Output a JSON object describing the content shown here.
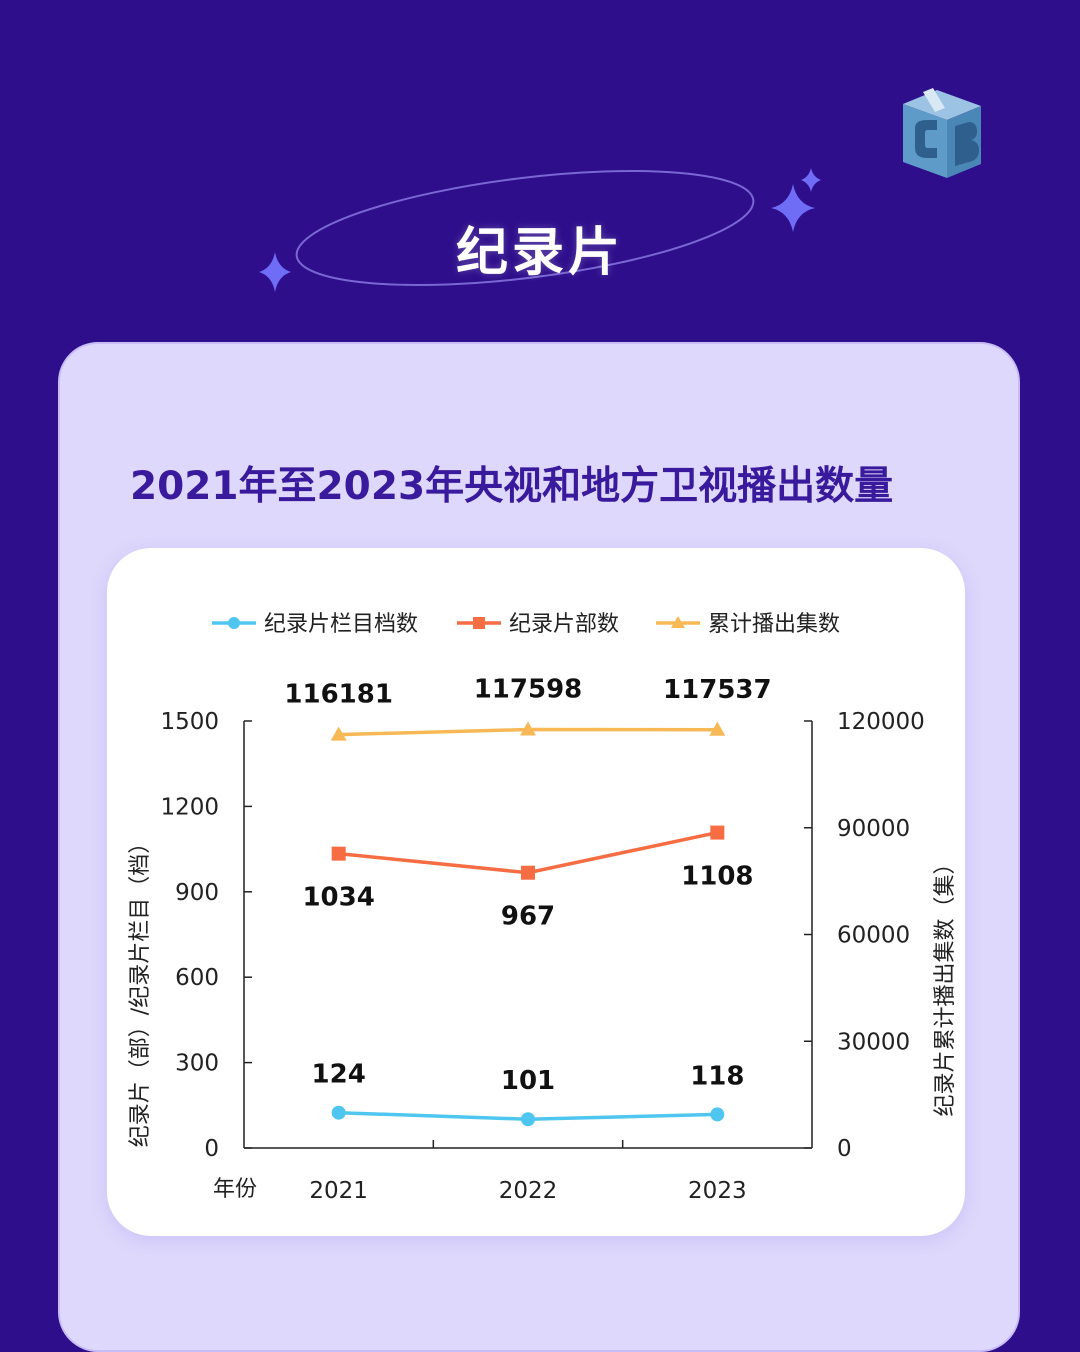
{
  "header": {
    "title": "纪录片"
  },
  "panel": {
    "title": "2021年至2023年央视和地方卫视播出数量"
  },
  "colors": {
    "background": "#2e0e8b",
    "panel": "#ded8fc",
    "title": "#3a1a9c",
    "star": "#6f6cf5"
  },
  "chart_data": {
    "type": "line",
    "x": [
      "2021",
      "2022",
      "2023"
    ],
    "xlabel": "年份",
    "ylabel_left": "纪录片（部）/纪录片栏目（档）",
    "ylabel_right": "纪录片累计播出集数（集）",
    "ylim_left": [
      0,
      1500
    ],
    "ylim_right": [
      0,
      120000
    ],
    "yticks_left": [
      "0",
      "300",
      "600",
      "900",
      "1200",
      "1500"
    ],
    "yticks_right": [
      "0",
      "30000",
      "60000",
      "90000",
      "120000"
    ],
    "legend_position": "top",
    "series": [
      {
        "name": "纪录片栏目档数",
        "axis": "left",
        "color": "#4fc6f0",
        "marker": "circle",
        "values": [
          124,
          101,
          118
        ],
        "labels": [
          "124",
          "101",
          "118"
        ]
      },
      {
        "name": "纪录片部数",
        "axis": "left",
        "color": "#f66d43",
        "marker": "square",
        "values": [
          1034,
          967,
          1108
        ],
        "labels": [
          "1034",
          "967",
          "1108"
        ]
      },
      {
        "name": "累计播出集数",
        "axis": "right",
        "color": "#f7b955",
        "marker": "triangle",
        "values": [
          116181,
          117598,
          117537
        ],
        "labels": [
          "116181",
          "117598",
          "117537"
        ]
      }
    ]
  }
}
